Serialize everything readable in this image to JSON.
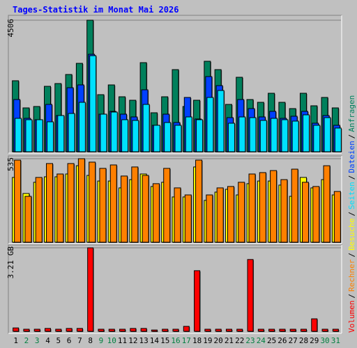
{
  "title": "Tages-Statistik im Monat Mai 2026",
  "legend_separator": "/",
  "chart_data": [
    {
      "type": "bar",
      "ylim": [
        0,
        4506
      ],
      "yticks": [
        4506
      ],
      "grid": true,
      "series": [
        {
          "name": "Anfragen",
          "color": "#00805c",
          "values": [
            2432,
            1502,
            1550,
            2241,
            2336,
            2646,
            3028,
            4506,
            1955,
            2289,
            1883,
            1764,
            3052,
            1335,
            1883,
            2813,
            1550,
            1764,
            3099,
            2813,
            1621,
            2551,
            1788,
            1693,
            2003,
            1693,
            1478,
            2003,
            1574,
            1860,
            1502
          ]
        },
        {
          "name": "Dateien",
          "color": "#0040ff",
          "values": [
            1788,
            1144,
            1097,
            1621,
            1240,
            2193,
            2289,
            3338,
            1287,
            1383,
            1287,
            1192,
            2122,
            906,
            1287,
            1001,
            1860,
            1121,
            2575,
            2265,
            1168,
            1788,
            1478,
            1192,
            1383,
            1144,
            1216,
            1383,
            977,
            1240,
            906
          ]
        },
        {
          "name": "Seiten",
          "color": "#00e0ff",
          "values": [
            1144,
            1097,
            1097,
            1025,
            1240,
            1311,
            1693,
            3290,
            1287,
            1359,
            1097,
            1073,
            1621,
            906,
            1001,
            906,
            1192,
            1097,
            1860,
            2098,
            977,
            1192,
            1168,
            1073,
            1144,
            1097,
            1049,
            1264,
            906,
            1168,
            811
          ]
        }
      ]
    },
    {
      "type": "bar",
      "ylim": [
        0,
        535
      ],
      "yticks": [
        535
      ],
      "grid": true,
      "series": [
        {
          "name": "Besuche",
          "color": "#ffff00",
          "values": [
            415,
            312,
            384,
            419,
            419,
            437,
            490,
            428,
            392,
            392,
            348,
            401,
            437,
            357,
            384,
            290,
            290,
            482,
            268,
            321,
            339,
            303,
            375,
            392,
            392,
            366,
            294,
            415,
            348,
            401,
            303
          ]
        },
        {
          "name": "Rechner",
          "color": "#ff8000",
          "values": [
            526,
            294,
            415,
            504,
            437,
            504,
            535,
            513,
            473,
            495,
            424,
            482,
            428,
            375,
            473,
            348,
            303,
            526,
            303,
            348,
            357,
            384,
            437,
            446,
            459,
            401,
            468,
            384,
            357,
            490,
            325
          ]
        }
      ]
    },
    {
      "type": "bar",
      "ylim": [
        0,
        3.21
      ],
      "yticks": [
        {
          "value": 3.21,
          "label": "3.21 GB"
        }
      ],
      "grid": true,
      "categories": [
        "1",
        "2",
        "3",
        "4",
        "5",
        "6",
        "7",
        "8",
        "9",
        "10",
        "11",
        "12",
        "13",
        "14",
        "15",
        "16",
        "17",
        "18",
        "19",
        "20",
        "21",
        "22",
        "23",
        "24",
        "25",
        "26",
        "27",
        "28",
        "29",
        "30",
        "31"
      ],
      "category_colors": [
        "#000000",
        "#008040",
        "#008040",
        "#000000",
        "#000000",
        "#000000",
        "#000000",
        "#000000",
        "#008040",
        "#008040",
        "#000000",
        "#000000",
        "#000000",
        "#000000",
        "#000000",
        "#008040",
        "#008040",
        "#000000",
        "#000000",
        "#000000",
        "#000000",
        "#000000",
        "#008040",
        "#008040",
        "#000000",
        "#000000",
        "#000000",
        "#000000",
        "#000000",
        "#008040",
        "#008040"
      ],
      "series": [
        {
          "name": "Volumen",
          "color": "#ff0000",
          "values": [
            0.13,
            0.08,
            0.08,
            0.11,
            0.08,
            0.11,
            0.11,
            3.21,
            0.08,
            0.08,
            0.08,
            0.11,
            0.11,
            0.05,
            0.08,
            0.08,
            0.19,
            2.33,
            0.08,
            0.08,
            0.08,
            0.08,
            2.76,
            0.08,
            0.08,
            0.08,
            0.08,
            0.08,
            0.48,
            0.08,
            0.08
          ]
        }
      ]
    }
  ]
}
